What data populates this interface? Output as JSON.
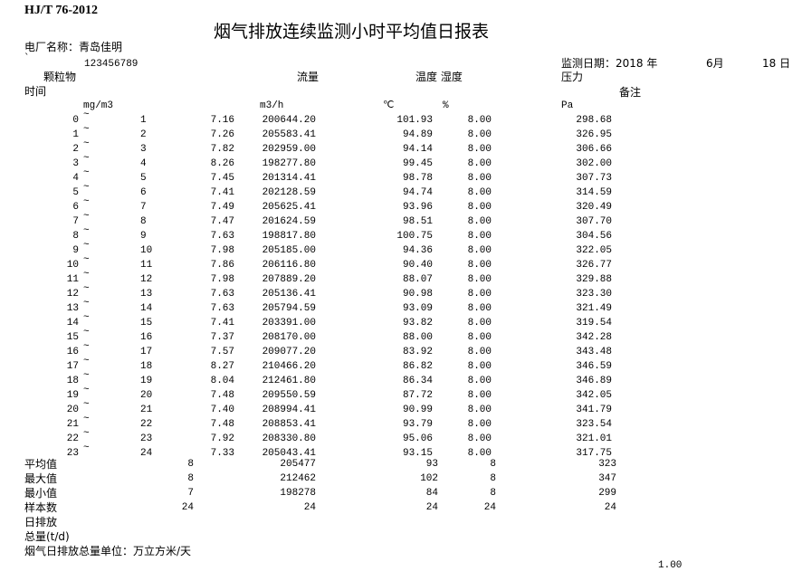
{
  "standard": "HJ/T 76-2012",
  "title": "烟气排放连续监测小时平均值日报表",
  "plant_label": "电厂名称：青岛佳明",
  "mark": "`",
  "plant_code": "123456789",
  "date": {
    "label": "监测日期：",
    "year": "2018",
    "year_unit": "年",
    "month": "6",
    "month_unit": "月",
    "day": "18",
    "day_unit": "日"
  },
  "headers": {
    "particulate": "颗粒物",
    "flow": "流量",
    "temp_humidity": "温度 湿度",
    "pressure": "压力",
    "time": "时间",
    "remark": "备注"
  },
  "units": {
    "particulate": "mg/m3",
    "flow": "m3/h",
    "temp": "℃",
    "humidity": "%",
    "pressure": "Pa"
  },
  "rows": [
    [
      "0",
      "1",
      "7.16",
      "200644.20",
      "101.93",
      "8.00",
      "298.68"
    ],
    [
      "1",
      "2",
      "7.26",
      "205583.41",
      "94.89",
      "8.00",
      "326.95"
    ],
    [
      "2",
      "3",
      "7.82",
      "202959.00",
      "94.14",
      "8.00",
      "306.66"
    ],
    [
      "3",
      "4",
      "8.26",
      "198277.80",
      "99.45",
      "8.00",
      "302.00"
    ],
    [
      "4",
      "5",
      "7.45",
      "201314.41",
      "98.78",
      "8.00",
      "307.73"
    ],
    [
      "5",
      "6",
      "7.41",
      "202128.59",
      "94.74",
      "8.00",
      "314.59"
    ],
    [
      "6",
      "7",
      "7.49",
      "205625.41",
      "93.96",
      "8.00",
      "320.49"
    ],
    [
      "7",
      "8",
      "7.47",
      "201624.59",
      "98.51",
      "8.00",
      "307.70"
    ],
    [
      "8",
      "9",
      "7.63",
      "198817.80",
      "100.75",
      "8.00",
      "304.56"
    ],
    [
      "9",
      "10",
      "7.98",
      "205185.00",
      "94.36",
      "8.00",
      "322.05"
    ],
    [
      "10",
      "11",
      "7.86",
      "206116.80",
      "90.40",
      "8.00",
      "326.77"
    ],
    [
      "11",
      "12",
      "7.98",
      "207889.20",
      "88.07",
      "8.00",
      "329.88"
    ],
    [
      "12",
      "13",
      "7.63",
      "205136.41",
      "90.98",
      "8.00",
      "323.30"
    ],
    [
      "13",
      "14",
      "7.63",
      "205794.59",
      "93.09",
      "8.00",
      "321.49"
    ],
    [
      "14",
      "15",
      "7.41",
      "203391.00",
      "93.82",
      "8.00",
      "319.54"
    ],
    [
      "15",
      "16",
      "7.37",
      "208170.00",
      "88.00",
      "8.00",
      "342.28"
    ],
    [
      "16",
      "17",
      "7.57",
      "209077.20",
      "83.92",
      "8.00",
      "343.48"
    ],
    [
      "17",
      "18",
      "8.27",
      "210466.20",
      "86.82",
      "8.00",
      "346.59"
    ],
    [
      "18",
      "19",
      "8.04",
      "212461.80",
      "86.34",
      "8.00",
      "346.89"
    ],
    [
      "19",
      "20",
      "7.48",
      "209550.59",
      "87.72",
      "8.00",
      "342.05"
    ],
    [
      "20",
      "21",
      "7.40",
      "208994.41",
      "90.99",
      "8.00",
      "341.79"
    ],
    [
      "21",
      "22",
      "7.48",
      "208853.41",
      "93.79",
      "8.00",
      "323.54"
    ],
    [
      "22",
      "23",
      "7.92",
      "208330.80",
      "95.06",
      "8.00",
      "321.01"
    ],
    [
      "23",
      "24",
      "7.33",
      "205043.41",
      "93.15",
      "8.00",
      "317.75"
    ]
  ],
  "range_sep": "~",
  "summary": [
    [
      "平均值",
      "8",
      "205477",
      "93",
      "8",
      "323"
    ],
    [
      "最大值",
      "8",
      "212462",
      "102",
      "8",
      "347"
    ],
    [
      "最小值",
      "7",
      "198278",
      "84",
      "8",
      "299"
    ],
    [
      "样本数",
      "24",
      "24",
      "24",
      "24",
      "24"
    ]
  ],
  "daily_emission_label_1": "日排放",
  "daily_emission_label_2": "总量(t/d)",
  "flue_gas_unit_note": "烟气日排放总量单位：万立方米/天",
  "footer_value": "1.00"
}
